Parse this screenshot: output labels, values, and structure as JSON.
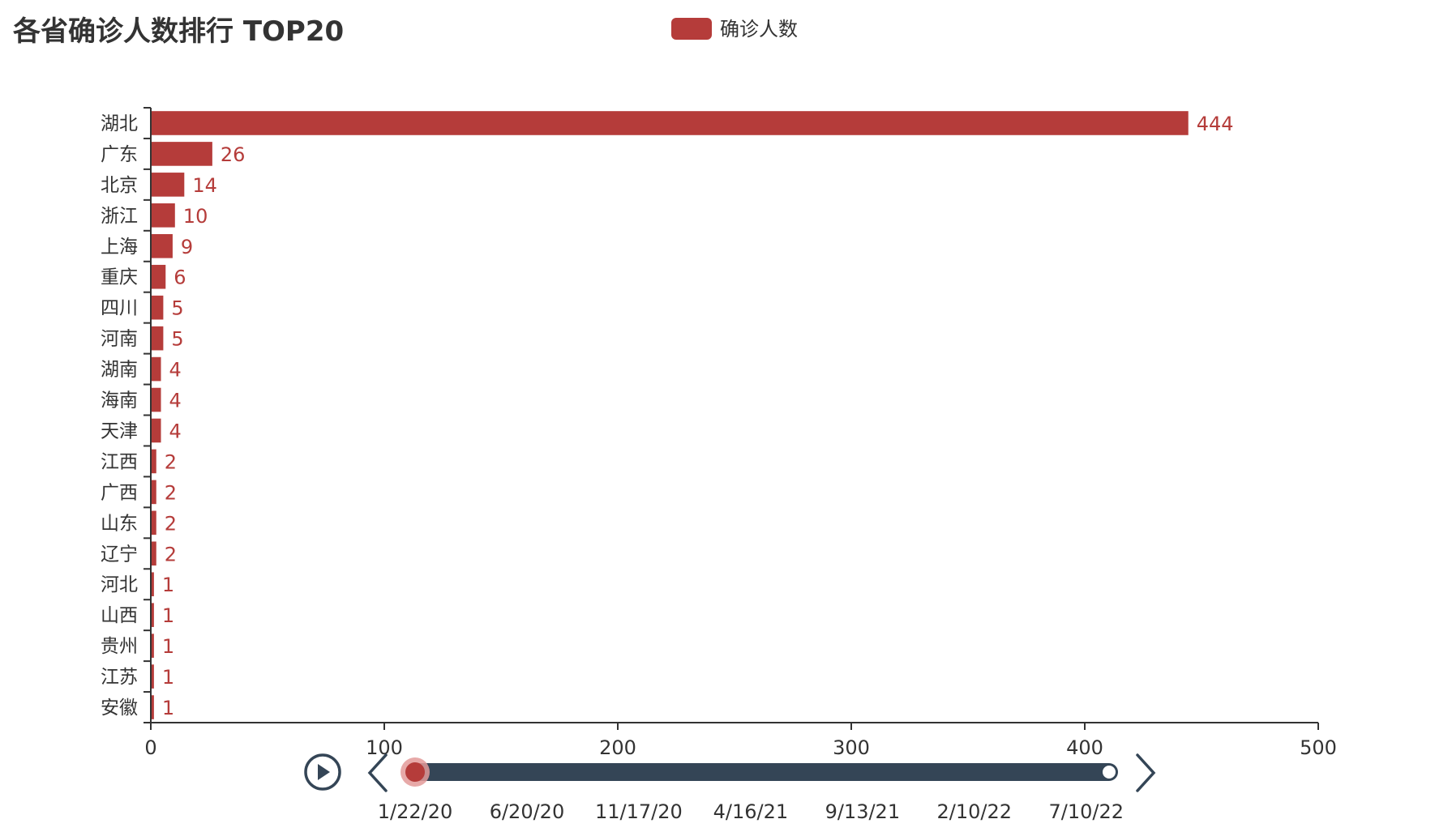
{
  "chart_data": {
    "type": "bar",
    "orientation": "horizontal",
    "title": "各省确诊人数排行 TOP20",
    "legend": {
      "label": "确诊人数",
      "position": "top-center"
    },
    "categories": [
      "湖北",
      "广东",
      "北京",
      "浙江",
      "上海",
      "重庆",
      "四川",
      "河南",
      "湖南",
      "海南",
      "天津",
      "江西",
      "广西",
      "山东",
      "辽宁",
      "河北",
      "山西",
      "贵州",
      "江苏",
      "安徽"
    ],
    "series": [
      {
        "name": "确诊人数",
        "values": [
          444,
          26,
          14,
          10,
          9,
          6,
          5,
          5,
          4,
          4,
          4,
          2,
          2,
          2,
          2,
          1,
          1,
          1,
          1,
          1
        ]
      }
    ],
    "xlim": [
      0,
      500
    ],
    "xticks": [
      0,
      100,
      200,
      300,
      400,
      500
    ],
    "grid": false,
    "colors": {
      "bar": "#b53c3a",
      "label": "#b53c3a",
      "axis": "#333333",
      "text": "#333333"
    }
  },
  "timeline": {
    "play_icon": "play-icon",
    "prev_icon": "chevron-left-icon",
    "next_icon": "chevron-right-icon",
    "labels": [
      "1/22/20",
      "6/20/20",
      "11/17/20",
      "4/16/21",
      "9/13/21",
      "2/10/22",
      "7/10/22"
    ],
    "current_label": "1/22/20",
    "progress": 0,
    "colors": {
      "track": "#344556",
      "handle": "#b53c3a",
      "handle_halo": "#e39a99"
    }
  }
}
